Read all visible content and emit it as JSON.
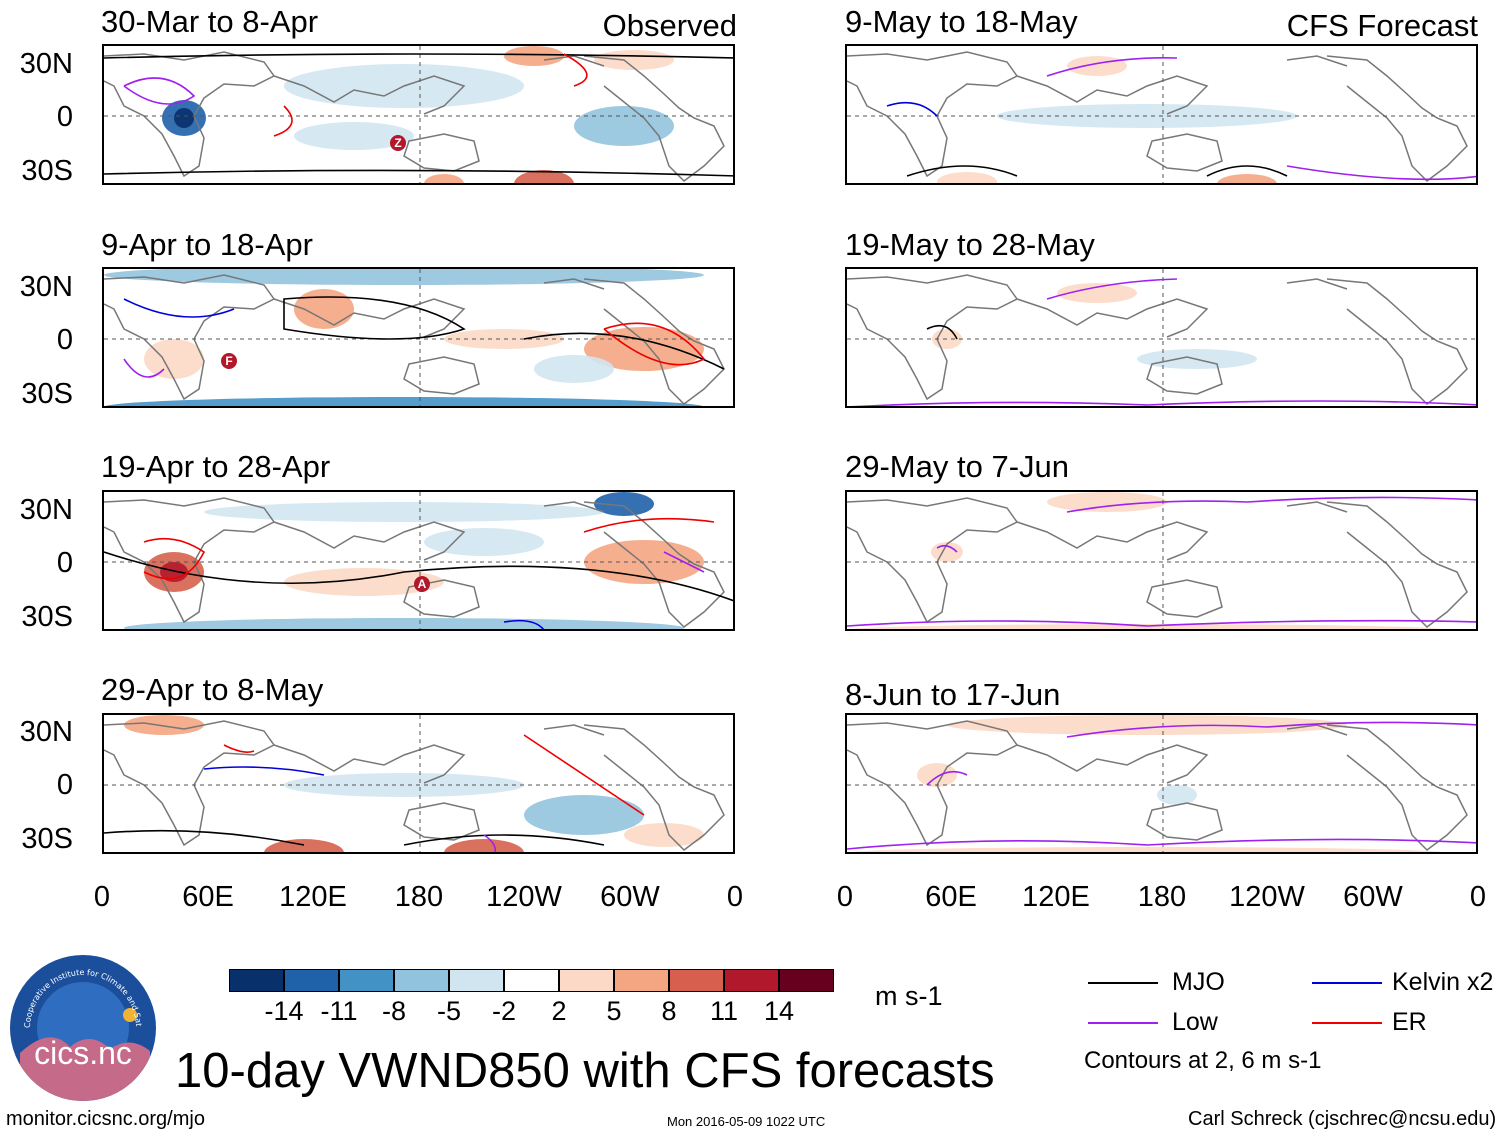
{
  "figure": {
    "title": "10-day VWND850 with CFS forecasts",
    "source_url": "monitor.cicsnc.org/mjo",
    "timestamp": "Mon 2016-05-09 1022 UTC",
    "author": "Carl Schreck (cjschrec@ncsu.edu)",
    "logo_text": "cics.nc",
    "logo_ring_text": "Cooperative Institute for Climate and Satellites"
  },
  "columns": {
    "left_title": "Observed",
    "right_title": "CFS Forecast"
  },
  "panels_observed": [
    {
      "title": "30-Mar to 8-Apr"
    },
    {
      "title": "9-Apr to 18-Apr"
    },
    {
      "title": "19-Apr to 28-Apr"
    },
    {
      "title": "29-Apr to 8-May"
    }
  ],
  "panels_forecast": [
    {
      "title": "9-May to 18-May"
    },
    {
      "title": "19-May to 28-May"
    },
    {
      "title": "29-May to 7-Jun"
    },
    {
      "title": "8-Jun to 17-Jun"
    }
  ],
  "axes": {
    "lat_labels": [
      "30N",
      "0",
      "30S"
    ],
    "lon_labels": [
      "0",
      "60E",
      "120E",
      "180",
      "120W",
      "60W",
      "0"
    ]
  },
  "colorbar": {
    "unit": "m s-1",
    "labels": [
      "-14",
      "-11",
      "-8",
      "-5",
      "-2",
      "2",
      "5",
      "8",
      "11",
      "14"
    ],
    "colors": [
      "#08306b",
      "#1f62aa",
      "#4292c6",
      "#92c3de",
      "#d1e5f0",
      "#ffffff",
      "#fcd9c7",
      "#f4a582",
      "#d6604d",
      "#b2182b",
      "#67001f"
    ]
  },
  "legend": {
    "items": [
      {
        "label": "MJO",
        "color": "#000000"
      },
      {
        "label": "Kelvin x2",
        "color": "#0000dd"
      },
      {
        "label": "Low",
        "color": "#a020f0"
      },
      {
        "label": "ER",
        "color": "#ee0000"
      }
    ],
    "note": "Contours at 2, 6 m s-1"
  },
  "storm_markers": [
    {
      "label": "Z"
    },
    {
      "label": "F"
    },
    {
      "label": "A"
    }
  ]
}
